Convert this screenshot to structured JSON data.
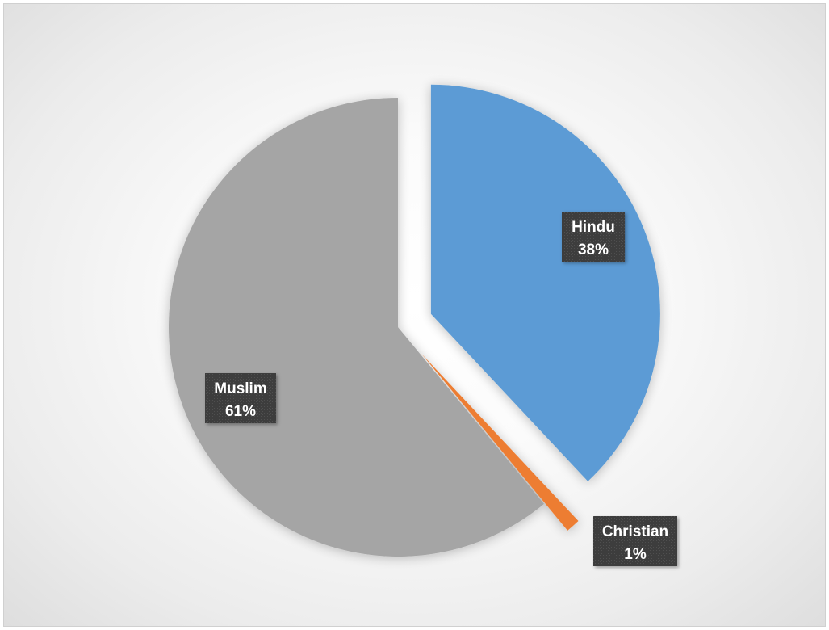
{
  "chart_data": {
    "type": "pie",
    "title": "",
    "legend": "none",
    "slices": [
      {
        "name": "Hindu",
        "value": 38,
        "label": "38%",
        "color": "#5b9bd5",
        "exploded": true
      },
      {
        "name": "Christian",
        "value": 1,
        "label": "1%",
        "color": "#ed7d31",
        "exploded": true
      },
      {
        "name": "Muslim",
        "value": 61,
        "label": "61%",
        "color": "#a5a5a5",
        "exploded": false
      }
    ],
    "data_label_style": {
      "background": "#404040",
      "text_color": "#ffffff"
    }
  }
}
